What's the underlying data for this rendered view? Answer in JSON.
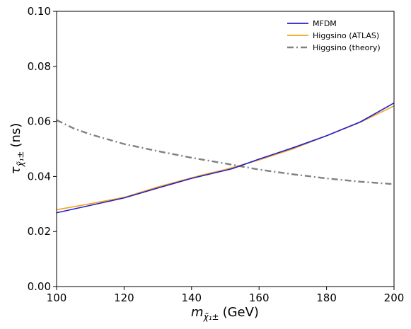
{
  "chart_data": {
    "type": "line",
    "xlabel": {
      "main": "m",
      "sub": "χ̃₁±",
      "unit": "(GeV)"
    },
    "ylabel": {
      "main": "τ",
      "sub": "χ̃₁±",
      "unit": "(ns)"
    },
    "xlim": [
      100,
      200
    ],
    "ylim": [
      0.0,
      0.1
    ],
    "xticks": [
      100,
      120,
      140,
      160,
      180,
      200
    ],
    "xtick_labels": [
      "100",
      "120",
      "140",
      "160",
      "180",
      "200"
    ],
    "yticks": [
      0.0,
      0.02,
      0.04,
      0.06,
      0.08,
      0.1
    ],
    "ytick_labels": [
      "0.00",
      "0.02",
      "0.04",
      "0.06",
      "0.08",
      "0.10"
    ],
    "grid": false,
    "legend_position": "top-right",
    "series": [
      {
        "name": "MFDM",
        "color": "#1f1fd0",
        "style": "solid",
        "x": [
          100,
          110,
          120,
          130,
          140,
          152,
          160,
          170,
          180,
          190,
          200
        ],
        "y": [
          0.0268,
          0.0295,
          0.0322,
          0.0358,
          0.0393,
          0.0428,
          0.0463,
          0.0504,
          0.0548,
          0.0598,
          0.0667
        ]
      },
      {
        "name": "Higgsino (ATLAS)",
        "color": "#f5a31a",
        "style": "solid",
        "x": [
          100,
          110,
          120,
          130,
          143,
          150,
          160,
          170,
          180,
          190,
          200
        ],
        "y": [
          0.0279,
          0.0301,
          0.0324,
          0.0362,
          0.0405,
          0.0425,
          0.046,
          0.05,
          0.0548,
          0.0597,
          0.0656
        ]
      },
      {
        "name": "Higgsino (theory)",
        "color": "#808080",
        "style": "dashdot",
        "x": [
          100,
          105,
          110,
          120,
          130,
          140,
          150,
          160,
          170,
          180,
          190,
          200
        ],
        "y": [
          0.0605,
          0.0575,
          0.0553,
          0.0518,
          0.0492,
          0.0468,
          0.0447,
          0.0425,
          0.0408,
          0.0393,
          0.0381,
          0.0372
        ]
      }
    ]
  }
}
